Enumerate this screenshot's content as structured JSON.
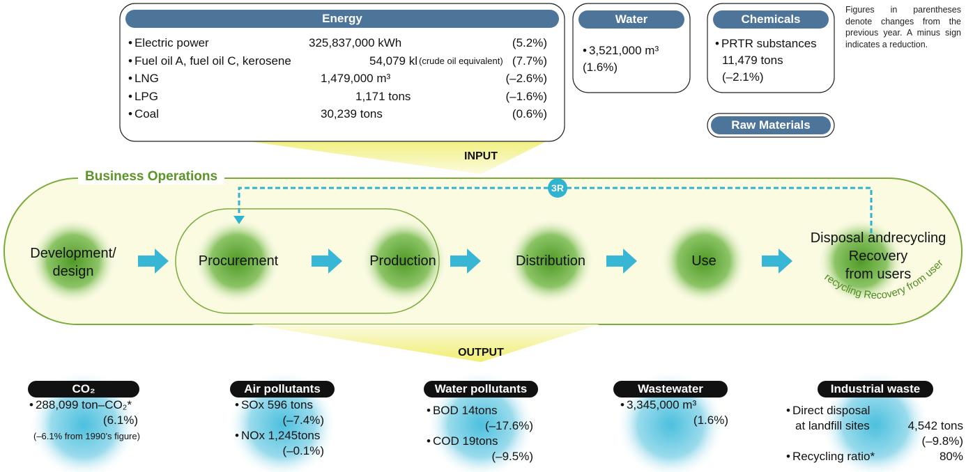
{
  "input_label": "INPUT",
  "output_label": "OUTPUT",
  "energy": {
    "title": "Energy",
    "items": [
      {
        "name": "Electric power",
        "amount": "325,837,000 kWh",
        "change": "(5.2%)"
      },
      {
        "name": "Fuel oil A, fuel oil C, kerosene",
        "amount": "54,079 kl",
        "note": "(crude oil equivalent)",
        "change": "(7.7%)"
      },
      {
        "name": "LNG",
        "amount": "1,479,000 m³",
        "change": "(–2.6%)"
      },
      {
        "name": "LPG",
        "amount": "1,171 tons",
        "change": "(–1.6%)"
      },
      {
        "name": "Coal",
        "amount": "30,239 tons",
        "change": "(0.6%)"
      }
    ]
  },
  "water": {
    "title": "Water",
    "amount": "3,521,000 m³",
    "change": "(1.6%)"
  },
  "chemicals": {
    "title": "Chemicals",
    "name": "PRTR substances",
    "amount": "11,479 tons",
    "change": "(–2.1%)"
  },
  "raw_materials": {
    "title": "Raw Materials"
  },
  "note": "Figures in parentheses denote changes from the previous year. A minus sign indicates a reduction.",
  "business_operations": {
    "title": "Business Operations",
    "loop_label": "3R",
    "stages": [
      [
        "Development/",
        "design"
      ],
      [
        "Procurement"
      ],
      [
        "Production"
      ],
      [
        "Distribution"
      ],
      [
        "Use"
      ],
      [
        "Disposal andrecycling",
        "Recovery",
        "from users"
      ]
    ],
    "curved_label": "recycling Recovery from users"
  },
  "outputs": [
    {
      "title": "CO₂",
      "lines": [
        "288,099 ton–CO₂*",
        "(6.1%)",
        "(–6.1% from 1990’s figure)"
      ]
    },
    {
      "title": "Air pollutants",
      "lines": [
        "SOx 596 tons",
        "(–7.4%)",
        "NOx 1,245tons",
        "(–0.1%)"
      ]
    },
    {
      "title": "Water pollutants",
      "lines": [
        "BOD 14tons",
        "(–17.6%)",
        "COD 19tons",
        "(–9.5%)"
      ]
    },
    {
      "title": "Wastewater",
      "lines": [
        "3,345,000 m³",
        "(1.6%)"
      ]
    },
    {
      "title": "Industrial waste",
      "lines": [
        "Direct disposal",
        "at landfill sites",
        "4,542 tons",
        "(–9.8%)",
        "Recycling ratio*",
        "80%"
      ]
    }
  ]
}
